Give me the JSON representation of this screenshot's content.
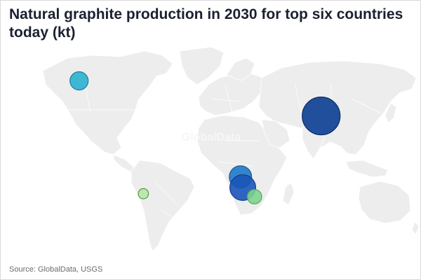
{
  "title": "Natural graphite production in 2030 for top six countries today (kt)",
  "source": "Source: GlobalData, USGS",
  "watermark": "GlobalData",
  "colors": {
    "land": "#ededed",
    "china": "#0a3d91",
    "mozambique": "#1a55b8",
    "tanzania": "#1f78c8",
    "canada": "#2ab0d0",
    "brazil": "#b8e6a8",
    "madagascar": "#7fd48f"
  },
  "bubbles": [
    {
      "id": "china",
      "country": "China",
      "lon": 104,
      "lat": 34,
      "scale": 1.0,
      "color": "#0a3d91",
      "stroke": "#072c6b"
    },
    {
      "id": "tanzania",
      "country": "Tanzania",
      "lon": 35,
      "lat": -6,
      "scale": 0.59,
      "color": "#1f78c8",
      "stroke": "#155a99"
    },
    {
      "id": "mozambique",
      "country": "Mozambique",
      "lon": 37,
      "lat": -13,
      "scale": 0.68,
      "color": "#1a55b8",
      "stroke": "#123f8a"
    },
    {
      "id": "madagascar",
      "country": "Madagascar",
      "lon": 47,
      "lat": -19,
      "scale": 0.38,
      "color": "#7fd48f",
      "stroke": "#4ea660"
    },
    {
      "id": "canada",
      "country": "Canada",
      "lon": -103,
      "lat": 57,
      "scale": 0.48,
      "color": "#2ab0d0",
      "stroke": "#1b7f98"
    },
    {
      "id": "brazil",
      "country": "Brazil",
      "lon": -48,
      "lat": -17,
      "scale": 0.27,
      "color": "#b8e6a8",
      "stroke": "#4e9a44"
    }
  ]
}
